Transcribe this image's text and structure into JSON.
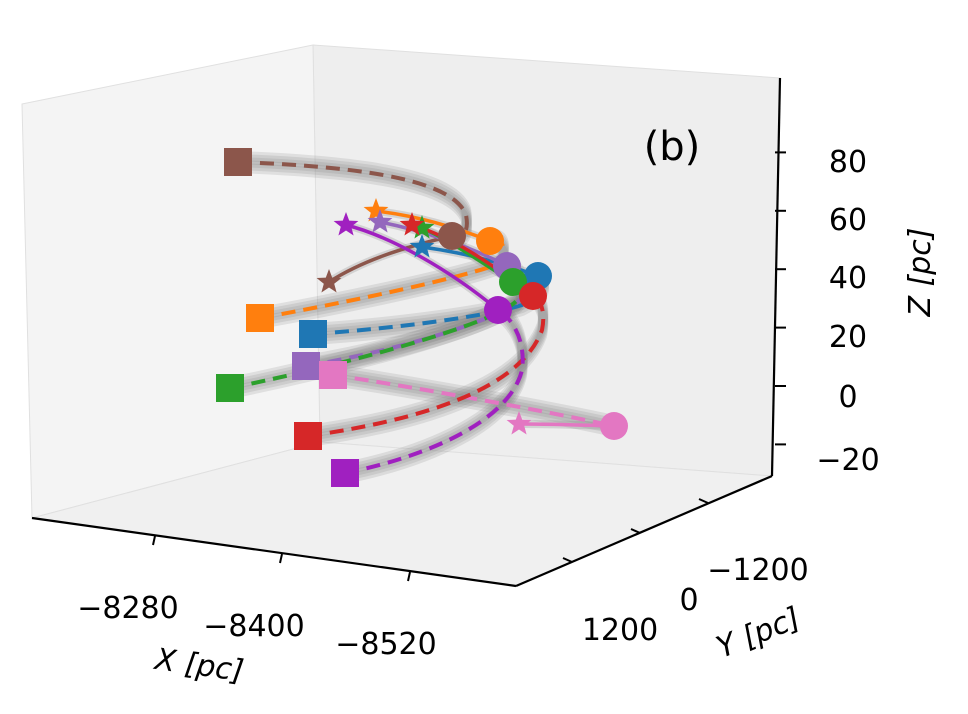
{
  "chart_data": {
    "type": "line",
    "subtype": "3d-orbit-trajectories",
    "panel_label": "(b)",
    "axes": {
      "x": {
        "label": "X [pc]",
        "ticks": [
          -8280,
          -8400,
          -8520
        ],
        "tick_labels": [
          "−8280",
          "−8400",
          "−8520"
        ]
      },
      "y": {
        "label": "Y [pc]",
        "ticks": [
          1200,
          0,
          -1200
        ],
        "tick_labels": [
          "1200",
          "0",
          "−1200"
        ]
      },
      "z": {
        "label": "Z [pc]",
        "ticks": [
          80,
          60,
          40,
          20,
          0,
          -20
        ],
        "tick_labels": [
          "80",
          "60",
          "40",
          "20",
          "0",
          "−20"
        ]
      }
    },
    "grid": false,
    "legend": "none",
    "markers": {
      "start": "square",
      "end": "circle",
      "other": "star"
    },
    "orbit_ensemble_color": "#808080",
    "series": [
      {
        "color": "#8c564b",
        "start_z": 78,
        "end_z": 50,
        "star_z": 36
      },
      {
        "color": "#ff7f0e",
        "start_z": 23,
        "end_z": 47,
        "star_z": 58
      },
      {
        "color": "#1f77b4",
        "start_z": 18,
        "end_z": 36,
        "star_z": 47
      },
      {
        "color": "#9467bd",
        "start_z": 8,
        "end_z": 43,
        "star_z": 56
      },
      {
        "color": "#2ca02c",
        "start_z": -1,
        "end_z": 37,
        "star_z": 54
      },
      {
        "color": "#e377c2",
        "start_z": 4,
        "end_z": -12,
        "star_z": -13
      },
      {
        "color": "#d62728",
        "start_z": -18,
        "end_z": 32,
        "star_z": 55
      },
      {
        "color": "#a020c0",
        "start_z": -28,
        "end_z": 27,
        "star_z": 54
      }
    ]
  }
}
